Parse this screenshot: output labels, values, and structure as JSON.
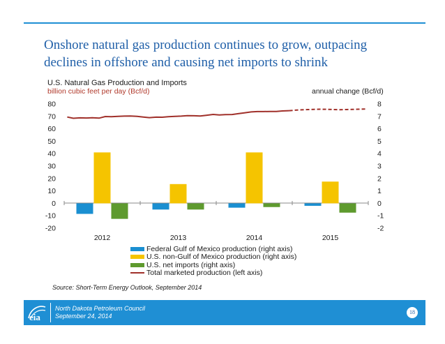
{
  "slide": {
    "headline": "Onshore natural gas production continues to grow, outpacing declines in offshore and causing net imports to shrink",
    "source": "Source:  Short-Term Energy Outlook, September 2014",
    "footer_org": "North Dakota Petroleum Council",
    "footer_date": "September 24, 2014",
    "page_number": "18",
    "logo_text": "eia",
    "accent_color": "#1f8fd4",
    "headline_color": "#1f5fa8"
  },
  "chart_data": {
    "type": "bar",
    "title": "U.S. Natural Gas Production and Imports",
    "left_axis_label": "billion cubic feet per day (Bcf/d)",
    "right_axis_label": "annual change (Bcf/d)",
    "categories": [
      "2012",
      "2013",
      "2014",
      "2015"
    ],
    "left_ylim": [
      -20,
      80
    ],
    "left_ticks": [
      "-20",
      "-10",
      "0",
      "10",
      "20",
      "30",
      "40",
      "50",
      "60",
      "70",
      "80"
    ],
    "right_ylim": [
      -2,
      8
    ],
    "right_ticks": [
      "-2",
      "-1",
      "0",
      "1",
      "2",
      "3",
      "4",
      "5",
      "6",
      "7",
      "8"
    ],
    "grid": false,
    "legend_position": "bottom",
    "series": [
      {
        "name": "Federal Gulf of Mexico production (right axis)",
        "axis": "right",
        "color": "#1a8fd1",
        "values": [
          -0.85,
          -0.5,
          -0.35,
          -0.2
        ]
      },
      {
        "name": "U.S. non-Gulf of Mexico production (right axis)",
        "axis": "right",
        "color": "#f5c400",
        "values": [
          4.1,
          1.55,
          4.1,
          1.75
        ]
      },
      {
        "name": "U.S. net imports (right axis)",
        "axis": "right",
        "color": "#5e9a2e",
        "values": [
          -1.25,
          -0.5,
          -0.3,
          -0.75
        ]
      }
    ],
    "line": {
      "name": "Total marketed production (left axis)",
      "axis": "left",
      "color": "#a0302a",
      "x": [
        2011.54,
        2011.62,
        2011.71,
        2011.79,
        2011.87,
        2011.96,
        2012.04,
        2012.12,
        2012.21,
        2012.29,
        2012.37,
        2012.46,
        2012.54,
        2012.62,
        2012.71,
        2012.79,
        2012.87,
        2012.96,
        2013.04,
        2013.12,
        2013.21,
        2013.29,
        2013.37,
        2013.46,
        2013.54,
        2013.62,
        2013.71,
        2013.79,
        2013.87,
        2013.96,
        2014.04,
        2014.12,
        2014.21,
        2014.29,
        2014.37,
        2014.46,
        2014.54,
        2014.62,
        2014.71,
        2014.79,
        2014.87,
        2014.96,
        2015.04,
        2015.12,
        2015.21,
        2015.29,
        2015.37,
        2015.46
      ],
      "values": [
        69.5,
        68.5,
        68.8,
        68.7,
        68.9,
        68.6,
        69.9,
        69.7,
        70.0,
        70.2,
        70.3,
        70.0,
        69.5,
        69.0,
        69.4,
        69.3,
        69.8,
        70.0,
        70.2,
        70.6,
        70.5,
        70.3,
        70.9,
        71.6,
        71.1,
        71.4,
        71.5,
        72.2,
        72.8,
        73.6,
        73.9,
        73.9,
        74.0,
        74.0,
        74.4,
        74.6,
        75.0,
        75.3,
        75.5,
        75.7,
        75.8,
        75.7,
        75.5,
        75.4,
        75.5,
        75.6,
        75.8,
        75.9
      ],
      "forecast_start_index": 35
    }
  }
}
